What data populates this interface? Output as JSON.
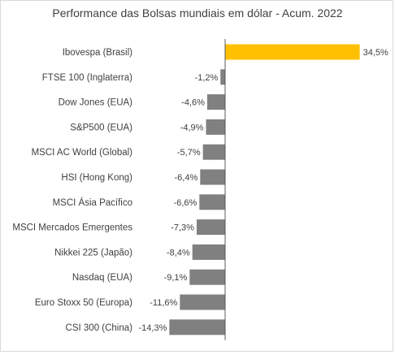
{
  "chart_data": {
    "type": "bar",
    "orientation": "horizontal",
    "title": "Performance  das Bolsas mundiais em dólar - Acum. 2022",
    "categories": [
      "Ibovespa (Brasil)",
      "FTSE 100 (Inglaterra)",
      "Dow Jones (EUA)",
      "S&P500 (EUA)",
      "MSCI AC World (Global)",
      "HSI (Hong Kong)",
      "MSCI Ásia Pacífico",
      "MSCI Mercados Emergentes",
      "Nikkei 225 (Japão)",
      "Nasdaq (EUA)",
      "Euro Stoxx 50 (Europa)",
      "CSI 300 (China)"
    ],
    "values": [
      34.5,
      -1.2,
      -4.6,
      -4.9,
      -5.7,
      -6.4,
      -6.6,
      -7.3,
      -8.4,
      -9.1,
      -11.6,
      -14.3
    ],
    "value_labels": [
      "34,5%",
      "-1,2%",
      "-4,6%",
      "-4,9%",
      "-5,7%",
      "-6,4%",
      "-6,6%",
      "-7,3%",
      "-8,4%",
      "-9,1%",
      "-11,6%",
      "-14,3%"
    ],
    "colors": {
      "positive": "#FFC000",
      "negative": "#808080"
    },
    "grid": false,
    "legend": "none"
  }
}
